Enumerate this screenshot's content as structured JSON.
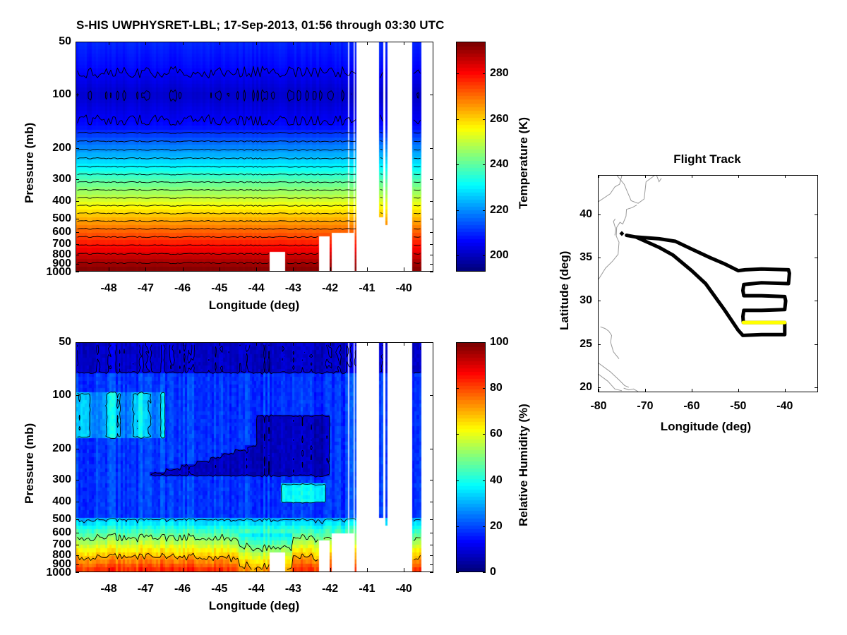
{
  "title": "S-HIS UWPHYSRET-LBL;   17-Sep-2013, 01:56 through 03:30 UTC",
  "chart_data": [
    {
      "type": "heatmap",
      "name": "temperature-cross-section",
      "title": "",
      "xlabel": "Longitude (deg)",
      "ylabel": "Pressure (mb)",
      "xlim": [
        -48.9,
        -39.2
      ],
      "ylim": [
        1000,
        50
      ],
      "yscale": "log",
      "x_ticks": [
        -48,
        -47,
        -46,
        -45,
        -44,
        -43,
        -42,
        -41,
        -40
      ],
      "x_tick_labels": [
        "-48",
        "-47",
        "-46",
        "-45",
        "-44",
        "-43",
        "-42",
        "-41",
        "-40"
      ],
      "y_ticks": [
        50,
        100,
        200,
        300,
        400,
        500,
        600,
        700,
        800,
        900,
        1000
      ],
      "y_tick_labels": [
        "50",
        "100",
        "200",
        "300",
        "400",
        "500",
        "600",
        "700",
        "800",
        "900",
        "1000"
      ],
      "colorbar": {
        "label": "Temperature (K)",
        "colormap": "jet",
        "range": [
          193,
          294
        ],
        "ticks": [
          200,
          220,
          240,
          260,
          280
        ],
        "tick_labels": [
          "200",
          "220",
          "240",
          "260",
          "280"
        ]
      },
      "profile_by_pressure": [
        {
          "p": 50,
          "value": 209
        },
        {
          "p": 70,
          "value": 206
        },
        {
          "p": 100,
          "value": 200
        },
        {
          "p": 150,
          "value": 206
        },
        {
          "p": 200,
          "value": 219
        },
        {
          "p": 250,
          "value": 229
        },
        {
          "p": 300,
          "value": 238
        },
        {
          "p": 400,
          "value": 252
        },
        {
          "p": 500,
          "value": 263
        },
        {
          "p": 600,
          "value": 272
        },
        {
          "p": 700,
          "value": 279
        },
        {
          "p": 800,
          "value": 285
        },
        {
          "p": 900,
          "value": 290
        },
        {
          "p": 1000,
          "value": 294
        }
      ],
      "missing_longitude_bands": [
        [
          -41.25,
          -40.65
        ],
        [
          -40.55,
          -40.45
        ],
        [
          -40.4,
          -39.75
        ],
        [
          -39.5,
          -39.2
        ]
      ],
      "missing_below_pressure": [
        {
          "lon": [
            -43.6,
            -43.2
          ],
          "p": 780
        },
        {
          "lon": [
            -42.3,
            -42.0
          ],
          "p": 650
        },
        {
          "lon": [
            -41.9,
            -41.3
          ],
          "p": 620
        },
        {
          "lon": [
            -40.65,
            -40.55
          ],
          "p": 500
        },
        {
          "lon": [
            -40.45,
            -40.4
          ],
          "p": 560
        }
      ],
      "contour_interval": 5
    },
    {
      "type": "heatmap",
      "name": "relative-humidity-cross-section",
      "title": "",
      "xlabel": "Longitude (deg)",
      "ylabel": "Pressure (mb)",
      "xlim": [
        -48.9,
        -39.2
      ],
      "ylim": [
        1000,
        50
      ],
      "yscale": "log",
      "x_ticks": [
        -48,
        -47,
        -46,
        -45,
        -44,
        -43,
        -42,
        -41,
        -40
      ],
      "x_tick_labels": [
        "-48",
        "-47",
        "-46",
        "-45",
        "-44",
        "-43",
        "-42",
        "-41",
        "-40"
      ],
      "y_ticks": [
        50,
        100,
        200,
        300,
        400,
        500,
        600,
        700,
        800,
        900,
        1000
      ],
      "y_tick_labels": [
        "50",
        "100",
        "200",
        "300",
        "400",
        "500",
        "600",
        "700",
        "800",
        "900",
        "1000"
      ],
      "colorbar": {
        "label": "Relative Humidity (%)",
        "colormap": "jet",
        "range": [
          0,
          100
        ],
        "ticks": [
          0,
          20,
          40,
          60,
          80,
          100
        ],
        "tick_labels": [
          "0",
          "20",
          "40",
          "60",
          "80",
          "100"
        ]
      },
      "features": [
        {
          "desc": "dry upper layer",
          "p": [
            50,
            75
          ],
          "value": 8
        },
        {
          "desc": "moist layer west",
          "lon": [
            -48.9,
            -46.5
          ],
          "p": [
            100,
            170
          ],
          "value": 35
        },
        {
          "desc": "dry tongue",
          "lon": [
            -47.5,
            -42.0
          ],
          "p": [
            130,
            300
          ],
          "value": 6
        },
        {
          "desc": "moist patch",
          "lon": [
            -43.3,
            -42.0
          ],
          "p": [
            320,
            400
          ],
          "value": 40
        },
        {
          "desc": "boundary layer",
          "p": [
            500,
            1000
          ],
          "value_range": [
            30,
            85
          ]
        }
      ],
      "contour_levels": [
        10,
        30,
        50,
        70
      ]
    },
    {
      "type": "line",
      "name": "flight-track",
      "title": "Flight Track",
      "xlabel": "Longitude (deg)",
      "ylabel": "Latitude (deg)",
      "xlim": [
        -80,
        -33
      ],
      "ylim": [
        19.5,
        44.5
      ],
      "x_ticks": [
        -80,
        -70,
        -60,
        -50,
        -40
      ],
      "x_tick_labels": [
        "-80",
        "-70",
        "-60",
        "-50",
        "-40"
      ],
      "y_ticks": [
        20,
        25,
        30,
        35,
        40
      ],
      "y_tick_labels": [
        "20",
        "25",
        "30",
        "35",
        "40"
      ],
      "series": [
        {
          "name": "full-track",
          "color": "#000000",
          "points": [
            [
              -74.0,
              37.6
            ],
            [
              -72.0,
              37.4
            ],
            [
              -67.0,
              37.2
            ],
            [
              -63.5,
              36.9
            ],
            [
              -60.0,
              36.0
            ],
            [
              -56.0,
              35.0
            ],
            [
              -53.0,
              34.3
            ],
            [
              -50.0,
              33.5
            ],
            [
              -48.5,
              33.6
            ],
            [
              -45.0,
              33.7
            ],
            [
              -39.2,
              33.6
            ],
            [
              -39.0,
              33.2
            ],
            [
              -39.2,
              32.0
            ],
            [
              -45.0,
              32.1
            ],
            [
              -48.8,
              31.9
            ],
            [
              -49.0,
              31.2
            ],
            [
              -48.8,
              30.6
            ],
            [
              -45.0,
              30.6
            ],
            [
              -40.0,
              30.5
            ],
            [
              -39.8,
              30.0
            ],
            [
              -40.0,
              29.0
            ],
            [
              -45.0,
              28.9
            ],
            [
              -48.8,
              28.9
            ],
            [
              -49.0,
              28.2
            ],
            [
              -48.9,
              27.5
            ],
            [
              -40.0,
              27.5
            ],
            [
              -40.0,
              26.1
            ],
            [
              -45.0,
              26.1
            ],
            [
              -49.0,
              26.0
            ],
            [
              -50.0,
              26.6
            ],
            [
              -53.0,
              29.0
            ],
            [
              -57.0,
              32.0
            ],
            [
              -60.0,
              33.5
            ],
            [
              -64.0,
              35.3
            ],
            [
              -67.0,
              36.2
            ],
            [
              -72.0,
              37.4
            ]
          ]
        },
        {
          "name": "current-segment",
          "color": "#ffff00",
          "points": [
            [
              -48.9,
              27.5
            ],
            [
              -40.0,
              27.5
            ]
          ]
        }
      ],
      "markers": [
        {
          "name": "start-marker",
          "lon": -75.0,
          "lat": 37.8,
          "color": "#000000"
        }
      ],
      "coastline_color": "#999999"
    }
  ]
}
